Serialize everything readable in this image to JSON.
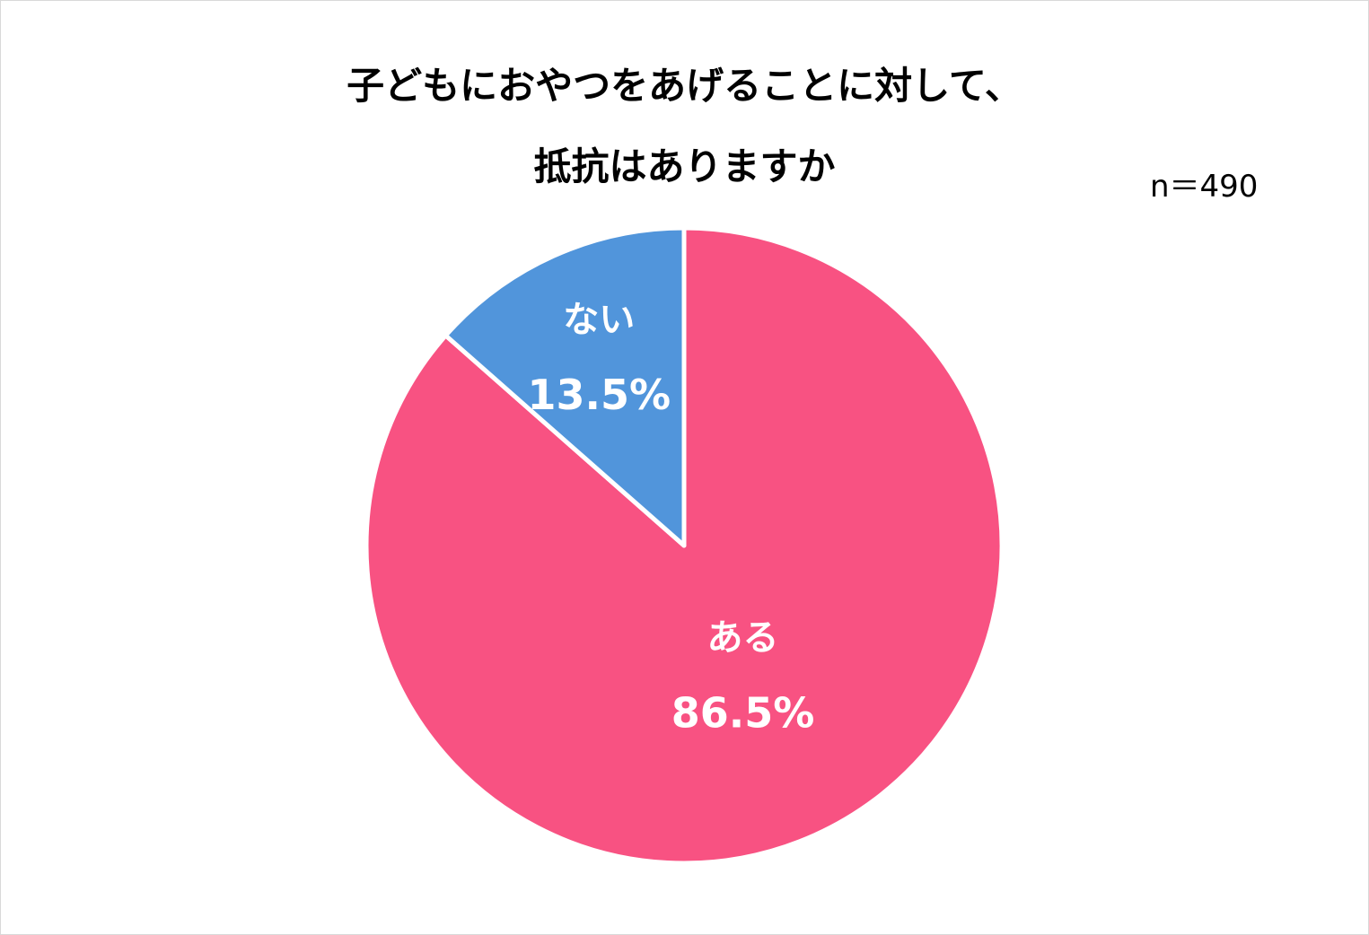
{
  "chart_data": {
    "type": "pie",
    "title_lines": [
      "子どもにおやつをあげることに対して、",
      "抵抗はありますか"
    ],
    "sample_size": "n＝490",
    "slices": [
      {
        "category": "ある",
        "value": 86.5,
        "value_label": "86.5%",
        "color": "#F85282"
      },
      {
        "category": "ない",
        "value": 13.5,
        "value_label": "13.5%",
        "color": "#5195DB"
      }
    ],
    "start_angle_deg": 0,
    "direction": "clockwise",
    "slice_border_color": "#ffffff",
    "label_color": "#ffffff"
  }
}
